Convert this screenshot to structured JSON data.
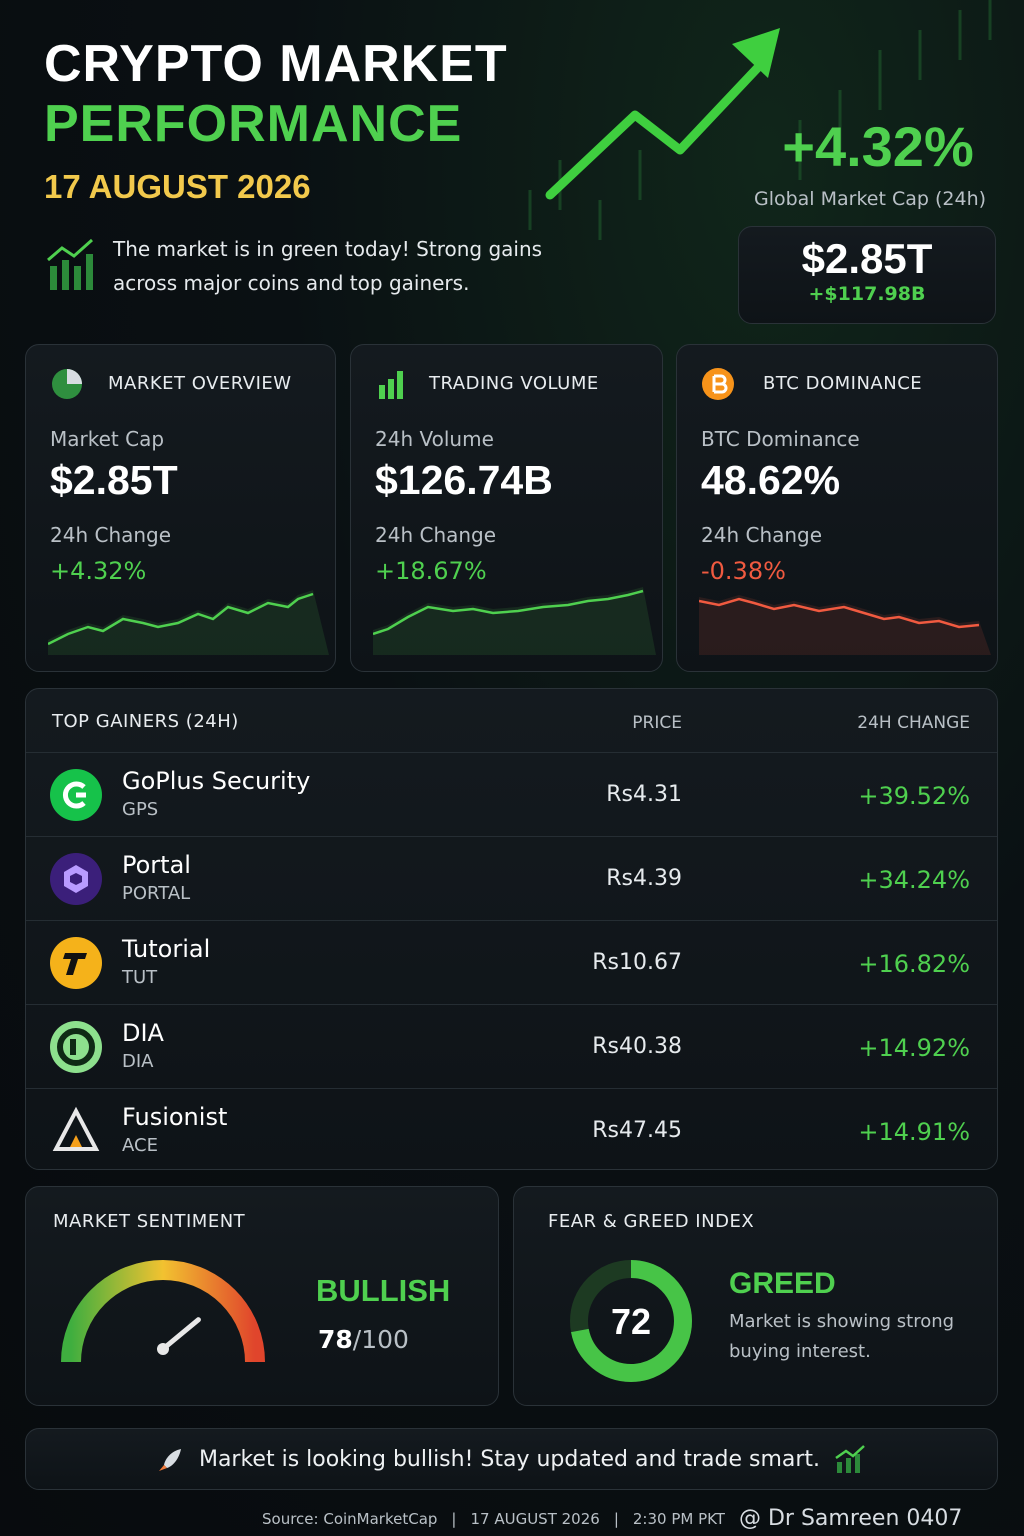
{
  "header": {
    "title_line1": "CRYPTO MARKET",
    "title_line2": "PERFORMANCE",
    "date": "17 AUGUST 2026",
    "summary": "The market is in green today! Strong gains across major coins and top gainers.",
    "global_change": "+4.32%",
    "global_label": "Global Market Cap (24h)",
    "global_value": "$2.85T",
    "global_delta": "+$117.98B"
  },
  "cards": [
    {
      "title": "MARKET OVERVIEW",
      "metric_label": "Market Cap",
      "metric_value": "$2.85T",
      "change_label": "24h Change",
      "change_value": "+4.32%"
    },
    {
      "title": "TRADING VOLUME",
      "metric_label": "24h Volume",
      "metric_value": "$126.74B",
      "change_label": "24h Change",
      "change_value": "+18.67%"
    },
    {
      "title": "BTC DOMINANCE",
      "metric_label": "BTC Dominance",
      "metric_value": "48.62%",
      "change_label": "24h Change",
      "change_value": "-0.38%"
    }
  ],
  "gainers": {
    "title": "TOP GAINERS (24H)",
    "columns": [
      "PRICE",
      "24H CHANGE"
    ],
    "rows": [
      {
        "name": "GoPlus Security",
        "symbol": "GPS",
        "price": "Rs4.31",
        "change": "+39.52%"
      },
      {
        "name": "Portal",
        "symbol": "PORTAL",
        "price": "Rs4.39",
        "change": "+34.24%"
      },
      {
        "name": "Tutorial",
        "symbol": "TUT",
        "price": "Rs10.67",
        "change": "+16.82%"
      },
      {
        "name": "DIA",
        "symbol": "DIA",
        "price": "Rs40.38",
        "change": "+14.92%"
      },
      {
        "name": "Fusionist",
        "symbol": "ACE",
        "price": "Rs47.45",
        "change": "+14.91%"
      }
    ]
  },
  "sentiment": {
    "title": "MARKET SENTIMENT",
    "status": "BULLISH",
    "score": 78,
    "out_of": 100
  },
  "fear_greed": {
    "title": "FEAR & GREED INDEX",
    "value": 72,
    "status": "GREED",
    "description": "Market is showing strong buying interest."
  },
  "banner": "Market is looking bullish! Stay updated and trade smart.",
  "footer": {
    "source": "Source: CoinMarketCap",
    "date": "17 AUGUST 2026",
    "time": "2:30 PM PKT",
    "author": "@ Dr Samreen 0407"
  }
}
